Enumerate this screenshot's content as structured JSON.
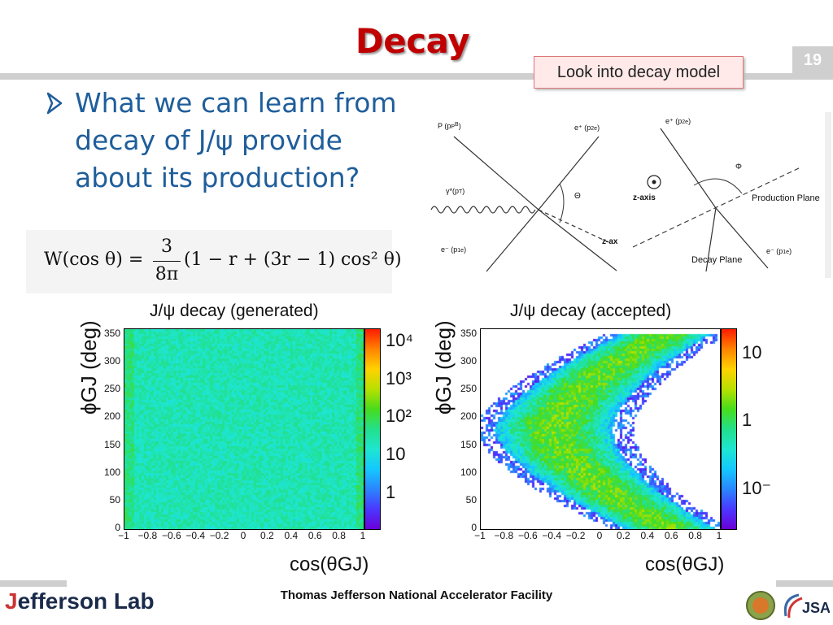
{
  "slide": {
    "title": "Decay",
    "page_number": "19",
    "callout": "Look into decay model",
    "bullet_text": "What we can learn from decay of J/ψ provide about its production?",
    "formula_parts": {
      "lhs": "W(cos θ) =",
      "num": "3",
      "den": "8π",
      "rhs": "(1 − r + (3r − 1) cos² θ)"
    },
    "footer": "Thomas Jefferson National Accelerator Facility",
    "logo": {
      "j": "J",
      "rest": "efferson Lab"
    }
  },
  "diagram": {
    "labels": {
      "p": "P (p",
      "p_sub": "P",
      "p_sup": "B",
      "eplus1": "e⁺ (p",
      "eplus1_sub": "2e",
      "gamma": "γ*(p",
      "gamma_sub": "T",
      "theta": "Θ",
      "eminus1": "e⁻ (p",
      "eminus1_sub": "1e",
      "zaxis_mid": "z-axis",
      "zaxis_low": "z-ax",
      "eplus2": "e⁺ (p",
      "eplus2_sub": "2e",
      "phi": "Φ",
      "production_plane": "Production Plane",
      "decay_plane": "Decay Plane",
      "eminus2": "e⁻ (p",
      "eminus2_sub": "1e"
    }
  },
  "chart_data": [
    {
      "type": "heatmap",
      "title": "J/ψ decay (generated)",
      "xlabel": "cos(θGJ)",
      "ylabel": "ϕGJ (deg)",
      "xlim": [
        -1,
        1
      ],
      "ylim": [
        0,
        360
      ],
      "x_ticks": [
        "−1",
        "−0.8",
        "−0.6",
        "−0.4",
        "−0.2",
        "0",
        "0.2",
        "0.4",
        "0.6",
        "0.8",
        "1"
      ],
      "y_ticks": [
        "0",
        "50",
        "100",
        "150",
        "200",
        "250",
        "300",
        "350"
      ],
      "colorbar_scale": "log",
      "colorbar_labels": [
        "1",
        "10",
        "10²",
        "10³",
        "10⁴"
      ],
      "z_description_level": "uniform ~10² counts, slightly higher at |cos|→1"
    },
    {
      "type": "heatmap",
      "title": "J/ψ decay (accepted)",
      "xlabel": "cos(θGJ)",
      "ylabel": "ϕGJ (deg)",
      "xlim": [
        -1,
        1
      ],
      "ylim": [
        0,
        360
      ],
      "x_ticks": [
        "−1",
        "−0.8",
        "−0.6",
        "−0.4",
        "−0.2",
        "0",
        "0.2",
        "0.4",
        "0.6",
        "0.8",
        "1"
      ],
      "y_ticks": [
        "0",
        "50",
        "100",
        "150",
        "200",
        "250",
        "300",
        "350"
      ],
      "colorbar_scale": "log",
      "colorbar_labels": [
        "10⁻",
        "1",
        "10"
      ],
      "acceptance_band": "C-shaped band, centered near cos≈-0.4 at ϕ=180, bending to cos≈0.6 at ϕ=0 and ϕ=360"
    }
  ],
  "colors": {
    "title": "#c00000",
    "bullet": "#1f5e9b",
    "bars": "#cfcfcf"
  }
}
